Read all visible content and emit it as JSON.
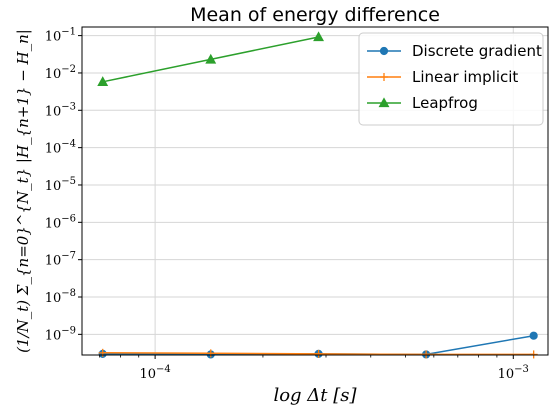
{
  "chart_data": {
    "type": "line",
    "title": "Mean of energy difference",
    "xlabel": "log Δt [s]",
    "ylabel": "(1/N_t) Σ_{n=0}^{N_t} |H_{n+1} − H_n|",
    "xscale": "log",
    "yscale": "log",
    "xlim": [
      6.25e-05,
      0.00125
    ],
    "ylim": [
      2.8e-10,
      0.17
    ],
    "grid": true,
    "legend_position": "top-right",
    "xticks": [
      {
        "value": 0.0001,
        "base": "10",
        "exp": "−4"
      },
      {
        "value": 0.001,
        "base": "10",
        "exp": "−3"
      }
    ],
    "yticks": [
      {
        "value": 1e-09,
        "base": "10",
        "exp": "−9"
      },
      {
        "value": 1e-08,
        "base": "10",
        "exp": "−8"
      },
      {
        "value": 1e-07,
        "base": "10",
        "exp": "−7"
      },
      {
        "value": 1e-06,
        "base": "10",
        "exp": "−6"
      },
      {
        "value": 1e-05,
        "base": "10",
        "exp": "−5"
      },
      {
        "value": 0.0001,
        "base": "10",
        "exp": "−4"
      },
      {
        "value": 0.001,
        "base": "10",
        "exp": "−3"
      },
      {
        "value": 0.01,
        "base": "10",
        "exp": "−2"
      },
      {
        "value": 0.1,
        "base": "10",
        "exp": "−1"
      }
    ],
    "series": [
      {
        "name": "Discrete gradient",
        "color": "#1f77b4",
        "marker": "circle",
        "x": [
          7.14e-05,
          0.000143,
          0.000286,
          0.000571,
          0.00114
        ],
        "y": [
          3e-10,
          2.9e-10,
          3e-10,
          2.9e-10,
          9.2e-10
        ]
      },
      {
        "name": "Linear implicit",
        "color": "#ff7f0e",
        "marker": "plus",
        "x": [
          7.14e-05,
          0.000143,
          0.000286,
          0.000571,
          0.00114
        ],
        "y": [
          3.2e-10,
          3.1e-10,
          3e-10,
          2.9e-10,
          2.9e-10
        ]
      },
      {
        "name": "Leapfrog",
        "color": "#2ca02c",
        "marker": "triangle",
        "x": [
          7.14e-05,
          0.000143,
          0.000286
        ],
        "y": [
          0.0058,
          0.023,
          0.092
        ]
      }
    ]
  }
}
